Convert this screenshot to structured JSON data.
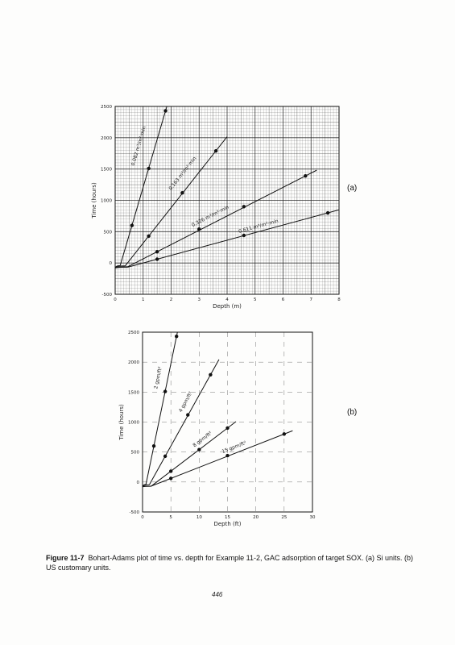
{
  "caption": {
    "label": "Figure 11-7",
    "text": "Bohart-Adams plot of time vs. depth for Example 11-2, GAC adsorption of target SOX. (a) Si units. (b) US customary units."
  },
  "page_number": "446",
  "chart_data": [
    {
      "type": "scatter",
      "panel_label": "(a)",
      "xlabel": "Depth (m)",
      "ylabel": "Time (hours)",
      "xlim": [
        0,
        8
      ],
      "ylim": [
        -500,
        2500
      ],
      "x_ticks": [
        "0",
        "1",
        "2",
        "3",
        "4",
        "5",
        "6",
        "7",
        "8"
      ],
      "y_ticks": [
        "-500",
        "0",
        "500",
        "1000",
        "1500",
        "2000",
        "2500"
      ],
      "grid": "dense graph-paper grid",
      "series": [
        {
          "name": "0.082 m³/m²·min",
          "points": [
            [
              0.6,
              600
            ],
            [
              1.2,
              1510
            ],
            [
              1.8,
              2430
            ]
          ]
        },
        {
          "name": "0.163 m³/m²·min",
          "points": [
            [
              1.2,
              430
            ],
            [
              2.4,
              1120
            ],
            [
              3.6,
              1790
            ]
          ]
        },
        {
          "name": "0.326 m³/m²·min",
          "points": [
            [
              1.5,
              180
            ],
            [
              3.0,
              540
            ],
            [
              4.6,
              900
            ],
            [
              6.8,
              1390
            ]
          ]
        },
        {
          "name": "0.611 m³/m²·min",
          "points": [
            [
              1.5,
              60
            ],
            [
              4.6,
              440
            ],
            [
              7.6,
              800
            ]
          ]
        }
      ]
    },
    {
      "type": "scatter",
      "panel_label": "(b)",
      "xlabel": "Depth (ft)",
      "ylabel": "Time (hours)",
      "xlim": [
        0,
        30
      ],
      "ylim": [
        -500,
        2500
      ],
      "x_ticks": [
        "0",
        "5",
        "10",
        "15",
        "20",
        "25",
        "30"
      ],
      "y_ticks": [
        "-500",
        "0",
        "500",
        "1000",
        "1500",
        "2000",
        "2500"
      ],
      "grid": "on",
      "series": [
        {
          "name": "2 gpm/ft²",
          "points": [
            [
              2,
              600
            ],
            [
              4,
              1510
            ],
            [
              6,
              2430
            ]
          ]
        },
        {
          "name": "4 gpm/ft²",
          "points": [
            [
              4,
              430
            ],
            [
              8,
              1120
            ],
            [
              12,
              1790
            ]
          ]
        },
        {
          "name": "8 gpm/ft²",
          "points": [
            [
              5,
              180
            ],
            [
              10,
              540
            ],
            [
              15,
              900
            ]
          ]
        },
        {
          "name": "15 gpm/ft²",
          "points": [
            [
              5,
              60
            ],
            [
              15,
              440
            ],
            [
              25,
              800
            ]
          ]
        }
      ]
    }
  ]
}
